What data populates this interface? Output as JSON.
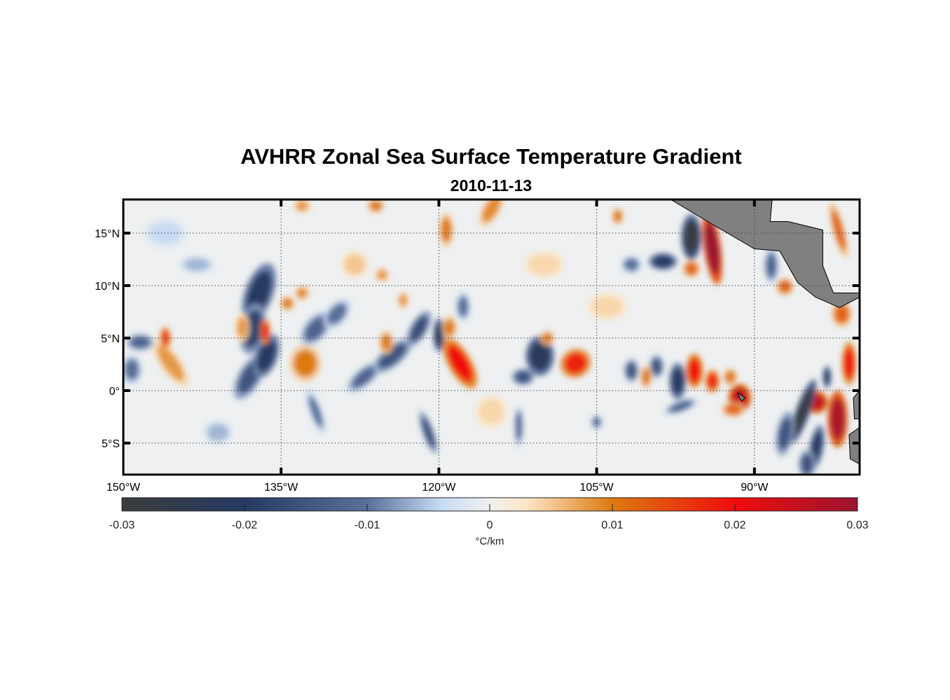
{
  "title": "AVHRR Zonal Sea Surface Temperature Gradient",
  "subtitle": "2010-11-13",
  "chart_data": {
    "type": "heatmap",
    "title": "AVHRR Zonal Sea Surface Temperature Gradient",
    "subtitle": "2010-11-13",
    "lon_range": [
      -150,
      -80
    ],
    "lat_range": [
      -8,
      18.2
    ],
    "x_ticks": [
      {
        "value": -150,
        "label": "150°W"
      },
      {
        "value": -135,
        "label": "135°W"
      },
      {
        "value": -120,
        "label": "120°W"
      },
      {
        "value": -105,
        "label": "105°W"
      },
      {
        "value": -90,
        "label": "90°W"
      }
    ],
    "y_ticks": [
      {
        "value": 15,
        "label": "15°N"
      },
      {
        "value": 10,
        "label": "10°N"
      },
      {
        "value": 5,
        "label": "5°N"
      },
      {
        "value": 0,
        "label": "0°"
      },
      {
        "value": -5,
        "label": "5°S"
      }
    ],
    "grid": true,
    "colorbar": {
      "label": "°C/km",
      "range": [
        -0.03,
        0.03
      ],
      "ticks": [
        -0.03,
        -0.02,
        -0.01,
        0,
        0.01,
        0.02,
        0.03
      ],
      "tick_labels": [
        "-0.03",
        "-0.02",
        "-0.01",
        "0",
        "0.01",
        "0.02",
        "0.03"
      ],
      "colormap": [
        [
          -0.03,
          "#3c3c3c"
        ],
        [
          -0.02,
          "#253a63"
        ],
        [
          -0.01,
          "#5a6f9a"
        ],
        [
          -0.004,
          "#c6dbf3"
        ],
        [
          0,
          "#f0f0f0"
        ],
        [
          0.003,
          "#fde6c6"
        ],
        [
          0.01,
          "#dc7a10"
        ],
        [
          0.02,
          "#f00c0c"
        ],
        [
          0.03,
          "#9a1530"
        ]
      ]
    },
    "land_color": "#808080",
    "features_note": "lon, lat, value(°C/km), half-width deg, half-height deg, rotation deg",
    "features": [
      [
        -137.1,
        9.3,
        -0.02,
        1.0,
        2.2,
        20
      ],
      [
        -137.7,
        5.9,
        -0.018,
        0.9,
        1.8,
        10
      ],
      [
        -138.0,
        1.3,
        -0.015,
        0.8,
        1.8,
        30
      ],
      [
        -136.4,
        3.3,
        -0.02,
        0.8,
        1.6,
        20
      ],
      [
        -145.5,
        2.6,
        0.008,
        0.7,
        2.0,
        -35
      ],
      [
        -146.0,
        5.0,
        0.015,
        0.4,
        0.8,
        0
      ],
      [
        -148.4,
        4.6,
        -0.012,
        1.0,
        0.6,
        0
      ],
      [
        -149.2,
        2.0,
        -0.01,
        0.7,
        1.0,
        0
      ],
      [
        -138.7,
        6.0,
        0.008,
        0.5,
        1.0,
        0
      ],
      [
        -136.5,
        5.6,
        0.018,
        0.35,
        0.9,
        0
      ],
      [
        -132.7,
        2.6,
        0.01,
        1.1,
        1.3,
        0
      ],
      [
        -134.4,
        8.3,
        0.01,
        0.5,
        0.5,
        0
      ],
      [
        -133.0,
        9.3,
        0.009,
        0.5,
        0.5,
        0
      ],
      [
        -131.7,
        5.9,
        -0.012,
        0.8,
        1.4,
        40
      ],
      [
        -129.7,
        7.3,
        -0.01,
        0.7,
        1.2,
        40
      ],
      [
        -127.1,
        1.3,
        -0.012,
        0.6,
        1.5,
        50
      ],
      [
        -124.4,
        3.3,
        -0.015,
        0.7,
        1.7,
        50
      ],
      [
        -121.9,
        5.9,
        -0.016,
        0.6,
        1.4,
        30
      ],
      [
        -120.0,
        5.3,
        -0.02,
        0.4,
        1.2,
        0
      ],
      [
        -125.0,
        4.6,
        0.01,
        0.5,
        0.8,
        0
      ],
      [
        -118.0,
        2.6,
        0.02,
        0.8,
        2.0,
        -30
      ],
      [
        -119.0,
        6.0,
        0.01,
        0.5,
        0.8,
        0
      ],
      [
        -117.7,
        8.0,
        -0.01,
        0.5,
        1.0,
        0
      ],
      [
        -121.0,
        -4.0,
        -0.015,
        0.4,
        1.6,
        -20
      ],
      [
        -131.7,
        -2.0,
        -0.01,
        0.4,
        1.6,
        -20
      ],
      [
        -123.4,
        8.6,
        0.008,
        0.4,
        0.6,
        0
      ],
      [
        -125.4,
        11.0,
        0.008,
        0.5,
        0.5,
        0
      ],
      [
        -115.0,
        17.3,
        0.009,
        0.6,
        1.4,
        30
      ],
      [
        -119.3,
        15.3,
        0.01,
        0.5,
        1.2,
        0
      ],
      [
        -133.0,
        17.6,
        0.008,
        0.6,
        0.5,
        0
      ],
      [
        -126.0,
        17.6,
        0.01,
        0.6,
        0.5,
        0
      ],
      [
        -110.4,
        3.3,
        -0.022,
        1.0,
        1.4,
        0
      ],
      [
        -112.0,
        1.3,
        -0.015,
        0.8,
        0.6,
        0
      ],
      [
        -107.0,
        2.6,
        0.018,
        1.1,
        1.0,
        -30
      ],
      [
        -109.7,
        5.0,
        0.01,
        0.5,
        0.5,
        0
      ],
      [
        -112.4,
        -3.4,
        -0.012,
        0.3,
        1.4,
        0
      ],
      [
        -96.0,
        14.6,
        -0.028,
        0.7,
        1.6,
        0
      ],
      [
        -94.0,
        13.6,
        0.03,
        0.6,
        2.6,
        -8
      ],
      [
        -98.7,
        12.3,
        -0.02,
        1.0,
        0.6,
        0
      ],
      [
        -96.0,
        11.6,
        0.012,
        0.6,
        0.6,
        0
      ],
      [
        -103.0,
        16.6,
        0.01,
        0.4,
        0.6,
        0
      ],
      [
        -101.7,
        12.0,
        -0.01,
        0.7,
        0.6,
        0
      ],
      [
        -101.7,
        1.9,
        -0.015,
        0.5,
        0.8,
        0
      ],
      [
        -99.3,
        2.3,
        -0.015,
        0.5,
        0.8,
        0
      ],
      [
        -100.3,
        1.3,
        0.01,
        0.4,
        0.8,
        0
      ],
      [
        -97.3,
        0.9,
        -0.02,
        0.6,
        1.3,
        0
      ],
      [
        -95.7,
        1.9,
        0.02,
        0.6,
        1.2,
        0
      ],
      [
        -94.0,
        0.9,
        0.018,
        0.5,
        0.8,
        0
      ],
      [
        -92.3,
        1.3,
        0.01,
        0.5,
        0.6,
        0
      ],
      [
        -91.4,
        -0.7,
        0.025,
        0.8,
        1.0,
        0
      ],
      [
        -92.0,
        -1.8,
        0.012,
        0.8,
        0.5,
        0
      ],
      [
        -87.1,
        9.9,
        0.012,
        0.6,
        0.6,
        0
      ],
      [
        -81.7,
        7.3,
        0.012,
        0.7,
        0.9,
        0
      ],
      [
        -82.0,
        15.3,
        0.012,
        0.4,
        2.0,
        -15
      ],
      [
        -81.0,
        2.6,
        0.02,
        0.5,
        1.5,
        0
      ],
      [
        -83.1,
        1.3,
        -0.02,
        0.3,
        0.8,
        0
      ],
      [
        -84.1,
        -1.1,
        0.025,
        0.8,
        0.8,
        0
      ],
      [
        -82.1,
        -2.7,
        0.028,
        0.7,
        2.0,
        0
      ],
      [
        -85.4,
        -2.0,
        -0.028,
        0.5,
        2.4,
        20
      ],
      [
        -84.1,
        -5.4,
        -0.02,
        0.5,
        1.6,
        10
      ],
      [
        -87.1,
        -4.1,
        -0.015,
        0.6,
        1.6,
        10
      ],
      [
        -85.0,
        -7.0,
        -0.015,
        0.6,
        1.0,
        0
      ],
      [
        -88.4,
        11.9,
        -0.012,
        0.5,
        1.2,
        0
      ],
      [
        -105.0,
        -3.0,
        -0.01,
        0.4,
        0.5,
        0
      ],
      [
        -97.0,
        -1.5,
        -0.012,
        1.2,
        0.4,
        -20
      ],
      [
        -143.0,
        12.0,
        -0.006,
        1.2,
        0.6,
        0
      ],
      [
        -141.0,
        -4.0,
        -0.006,
        1.0,
        0.8,
        0
      ],
      [
        -128.0,
        12.0,
        0.005,
        1.0,
        1.0,
        0
      ],
      [
        -110.0,
        12.0,
        0.004,
        1.5,
        1.0,
        0
      ],
      [
        -115.0,
        -2.0,
        0.004,
        1.2,
        1.2,
        0
      ],
      [
        -146.0,
        15.0,
        -0.004,
        1.5,
        1.0,
        0
      ],
      [
        -104.0,
        8.0,
        0.004,
        1.5,
        1.0,
        0
      ]
    ],
    "land": [
      [
        [
          -98.3,
          18.4
        ],
        [
          -94.1,
          15.9
        ],
        [
          -90.0,
          13.5
        ],
        [
          -87.6,
          13.3
        ],
        [
          -85.9,
          10.3
        ],
        [
          -84.2,
          8.9
        ],
        [
          -81.9,
          7.9
        ],
        [
          -80.0,
          8.9
        ],
        [
          -80.0,
          9.3
        ],
        [
          -82.5,
          9.3
        ],
        [
          -83.5,
          11.9
        ],
        [
          -83.5,
          15.3
        ],
        [
          -86.8,
          16.1
        ],
        [
          -88.5,
          16.1
        ],
        [
          -88.3,
          18.4
        ]
      ],
      [
        [
          -80.0,
          0.0
        ],
        [
          -80.6,
          -0.7
        ],
        [
          -80.5,
          -2.7
        ],
        [
          -80.0,
          -2.7
        ]
      ],
      [
        [
          -80.0,
          -3.5
        ],
        [
          -81.0,
          -4.2
        ],
        [
          -80.9,
          -6.5
        ],
        [
          -80.0,
          -7.0
        ]
      ],
      [
        [
          -91.6,
          -0.2
        ],
        [
          -90.9,
          -0.7
        ],
        [
          -91.2,
          -1.0
        ],
        [
          -91.4,
          -0.7
        ]
      ]
    ]
  }
}
